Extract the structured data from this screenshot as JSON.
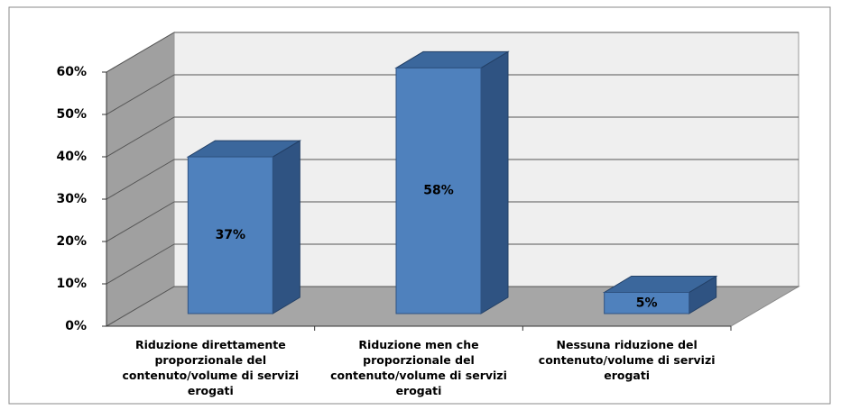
{
  "chart_data": {
    "type": "bar3d",
    "categories": [
      "Riduzione direttamente proporzionale del contenuto/volume di servizi erogati",
      "Riduzione men che proporzionale del contenuto/volume di servizi erogati",
      "Nessuna riduzione del contenuto/volume di servizi erogati"
    ],
    "values": [
      37,
      58,
      5
    ],
    "value_labels": [
      "37%",
      "58%",
      "5%"
    ],
    "color": "#4f81bd",
    "ylim": [
      0,
      60
    ],
    "yticks": [
      {
        "value": 0,
        "label": "0%"
      },
      {
        "value": 10,
        "label": "10%"
      },
      {
        "value": 20,
        "label": "20%"
      },
      {
        "value": 30,
        "label": "30%"
      },
      {
        "value": 40,
        "label": "40%"
      },
      {
        "value": 50,
        "label": "50%"
      },
      {
        "value": 60,
        "label": "60%"
      }
    ],
    "grid": true
  }
}
